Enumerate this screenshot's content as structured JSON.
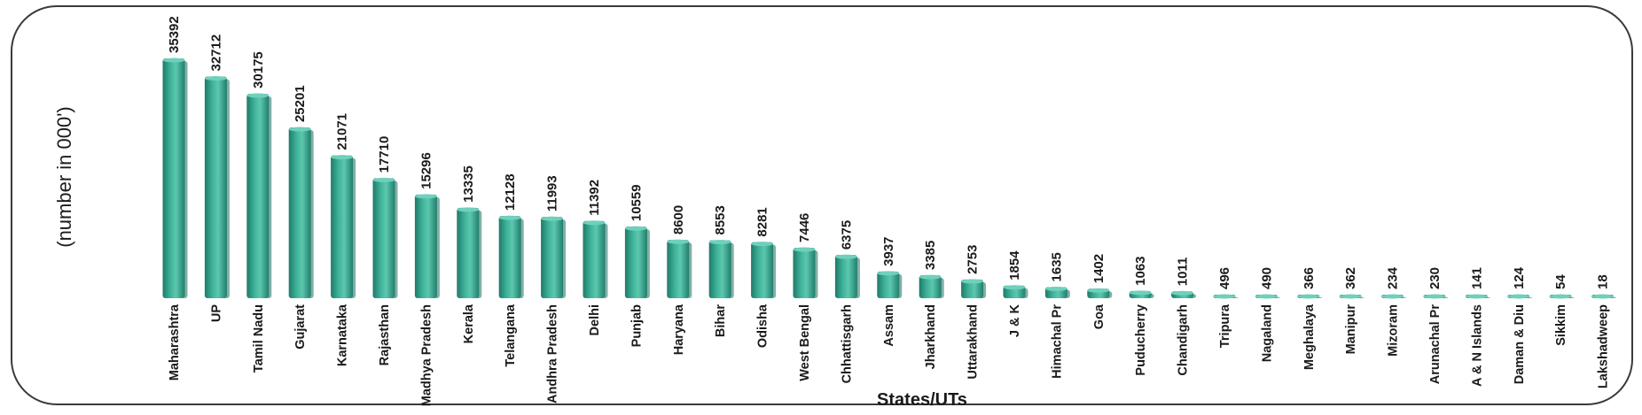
{
  "chart_data": {
    "type": "bar",
    "xlabel": "States/UTs",
    "ylabel": "(number in 000')",
    "categories": [
      "Maharashtra",
      "UP",
      "Tamil Nadu",
      "Gujarat",
      "Karnataka",
      "Rajasthan",
      "Madhya Pradesh",
      "Kerala",
      "Telangana",
      "Andhra Pradesh",
      "Delhi",
      "Punjab",
      "Haryana",
      "Bihar",
      "Odisha",
      "West Bengal",
      "Chhattisgarh",
      "Assam",
      "Jharkhand",
      "Uttarakhand",
      "J & K",
      "Himachal Pr",
      "Goa",
      "Puducherry",
      "Chandigarh",
      "Tripura",
      "Nagaland",
      "Meghalaya",
      "Manipur",
      "Mizoram",
      "Arunachal Pr",
      "A & N Islands",
      "Daman & Diu",
      "Sikkim",
      "Lakshadweep"
    ],
    "values": [
      35392,
      32712,
      30175,
      25201,
      21071,
      17710,
      15296,
      13335,
      12128,
      11993,
      11392,
      10559,
      8600,
      8553,
      8281,
      7446,
      6375,
      3937,
      3385,
      2753,
      1854,
      1635,
      1402,
      1063,
      1011,
      496,
      490,
      366,
      362,
      234,
      230,
      141,
      124,
      54,
      18
    ],
    "ylim": [
      0,
      36000
    ],
    "grid": false,
    "legend": "none",
    "bar_color": "#2e9d87",
    "bar_highlight": "#6fd0bb",
    "bar_shadow": "#1e6e5f"
  }
}
